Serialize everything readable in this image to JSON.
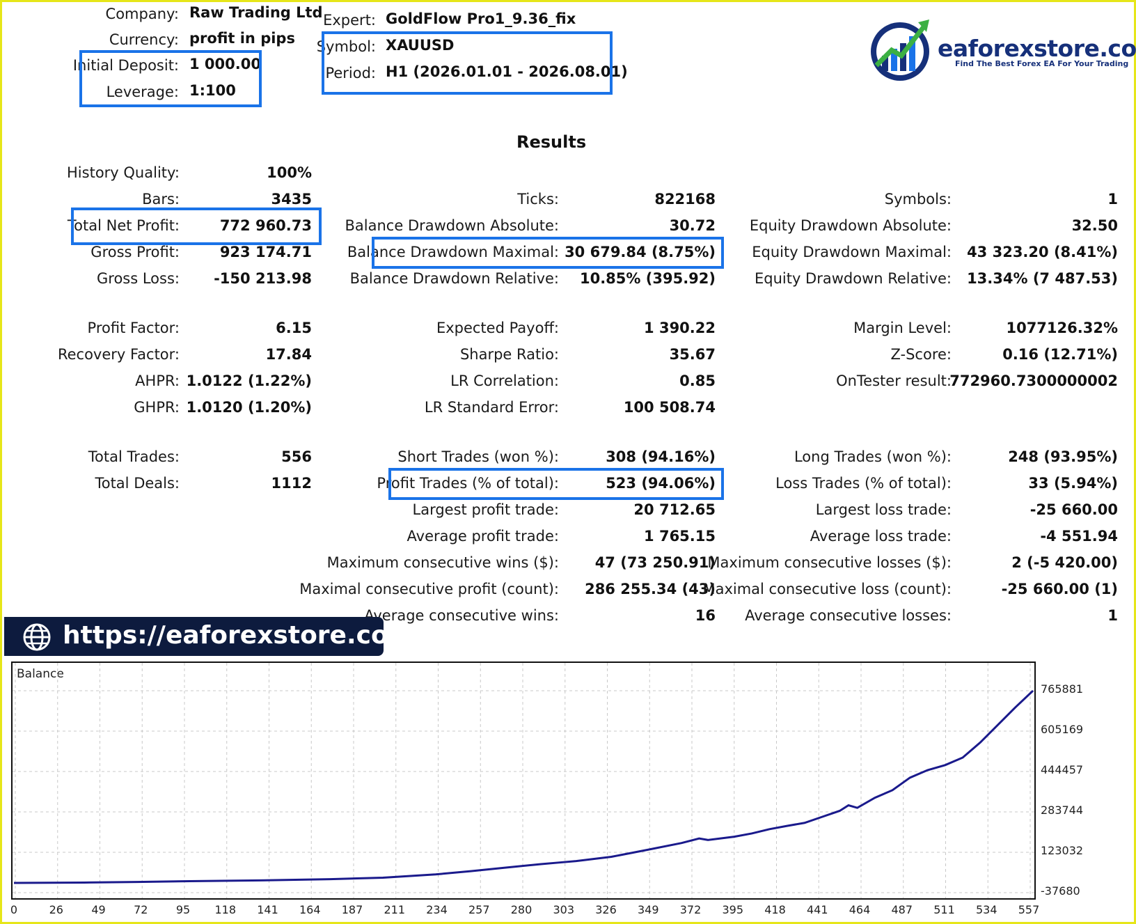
{
  "header": {
    "company_label": "Company:",
    "company": "Raw Trading Ltd",
    "currency_label": "Currency:",
    "currency": "profit in pips",
    "deposit_label": "Initial Deposit:",
    "deposit": "1 000.00",
    "leverage_label": "Leverage:",
    "leverage": "1:100",
    "expert_label": "Expert:",
    "expert": "GoldFlow Pro1_9.36_fix",
    "symbol_label": "Symbol:",
    "symbol": "XAUUSD",
    "period_label": "Period:",
    "period": "H1 (2026.01.01 - 2026.08.01)"
  },
  "logo": {
    "name": "eaforexstore.com",
    "tagline": "Find The Best Forex EA For Your Trading"
  },
  "results_title": "Results",
  "col1": {
    "history_quality_label": "History Quality:",
    "history_quality": "100%",
    "bars_label": "Bars:",
    "bars": "3435",
    "net_profit_label": "Total Net Profit:",
    "net_profit": "772 960.73",
    "gross_profit_label": "Gross Profit:",
    "gross_profit": "923 174.71",
    "gross_loss_label": "Gross Loss:",
    "gross_loss": "-150 213.98",
    "profit_factor_label": "Profit Factor:",
    "profit_factor": "6.15",
    "recovery_factor_label": "Recovery Factor:",
    "recovery_factor": "17.84",
    "ahpr_label": "AHPR:",
    "ahpr": "1.0122 (1.22%)",
    "ghpr_label": "GHPR:",
    "ghpr": "1.0120 (1.20%)",
    "total_trades_label": "Total Trades:",
    "total_trades": "556",
    "total_deals_label": "Total Deals:",
    "total_deals": "1112"
  },
  "col2": {
    "ticks_label": "Ticks:",
    "ticks": "822168",
    "bal_dd_abs_label": "Balance Drawdown Absolute:",
    "bal_dd_abs": "30.72",
    "bal_dd_max_label": "Balance Drawdown Maximal:",
    "bal_dd_max": "30 679.84 (8.75%)",
    "bal_dd_rel_label": "Balance Drawdown Relative:",
    "bal_dd_rel": "10.85% (395.92)",
    "expected_payoff_label": "Expected Payoff:",
    "expected_payoff": "1 390.22",
    "sharpe_label": "Sharpe Ratio:",
    "sharpe": "35.67",
    "lr_corr_label": "LR Correlation:",
    "lr_corr": "0.85",
    "lr_err_label": "LR Standard Error:",
    "lr_err": "100 508.74",
    "short_trades_label": "Short Trades (won %):",
    "short_trades": "308 (94.16%)",
    "profit_trades_label": "Profit Trades (% of total):",
    "profit_trades": "523 (94.06%)",
    "largest_profit_label": "Largest profit trade:",
    "largest_profit": "20 712.65",
    "avg_profit_label": "Average profit trade:",
    "avg_profit": "1 765.15",
    "max_cons_wins_label": "Maximum consecutive wins ($):",
    "max_cons_wins": "47 (73 250.91)",
    "max_cons_profit_label": "Maximal consecutive profit (count):",
    "max_cons_profit": "286 255.34 (43)",
    "avg_cons_wins_label": "Average consecutive wins:",
    "avg_cons_wins": "16"
  },
  "col3": {
    "symbols_label": "Symbols:",
    "symbols": "1",
    "eq_dd_abs_label": "Equity Drawdown Absolute:",
    "eq_dd_abs": "32.50",
    "eq_dd_max_label": "Equity Drawdown Maximal:",
    "eq_dd_max": "43 323.20 (8.41%)",
    "eq_dd_rel_label": "Equity Drawdown Relative:",
    "eq_dd_rel": "13.34% (7 487.53)",
    "margin_label": "Margin Level:",
    "margin": "1077126.32%",
    "zscore_label": "Z-Score:",
    "zscore": "0.16 (12.71%)",
    "ontester_label": "OnTester result:",
    "ontester": "772960.7300000002",
    "long_trades_label": "Long Trades (won %):",
    "long_trades": "248 (93.95%)",
    "loss_trades_label": "Loss Trades (% of total):",
    "loss_trades": "33 (5.94%)",
    "largest_loss_label": "Largest loss trade:",
    "largest_loss": "-25 660.00",
    "avg_loss_label": "Average loss trade:",
    "avg_loss": "-4 551.94",
    "max_cons_losses_label": "Maximum consecutive losses ($):",
    "max_cons_losses": "2 (-5 420.00)",
    "max_cons_loss_label": "Maximal consecutive loss (count):",
    "max_cons_loss": "-25 660.00 (1)",
    "avg_cons_losses_label": "Average consecutive losses:",
    "avg_cons_losses": "1"
  },
  "banner": {
    "url": "https://eaforexstore.com/",
    "icon": "globe-icon"
  },
  "colors": {
    "highlight": "#1a73e8",
    "banner_bg": "#0d1b3e",
    "line": "#1a1a8c",
    "frame": "#e6e619"
  },
  "chart_data": {
    "type": "line",
    "title": "",
    "legend": "Balance",
    "x_ticks": [
      "0",
      "26",
      "49",
      "72",
      "95",
      "118",
      "141",
      "164",
      "187",
      "211",
      "234",
      "257",
      "280",
      "303",
      "326",
      "349",
      "372",
      "395",
      "418",
      "441",
      "464",
      "487",
      "511",
      "534",
      "557"
    ],
    "y_ticks": [
      "765881",
      "605169",
      "444457",
      "283744",
      "123032",
      "-37680"
    ],
    "ylim": [
      -37680,
      765881
    ],
    "xlim": [
      0,
      580
    ],
    "series": [
      {
        "name": "Balance",
        "x": [
          0,
          40,
          70,
          100,
          140,
          180,
          210,
          240,
          260,
          280,
          300,
          310,
          320,
          340,
          360,
          380,
          390,
          395,
          410,
          420,
          430,
          440,
          450,
          460,
          470,
          475,
          480,
          490,
          500,
          510,
          520,
          530,
          540,
          550,
          560,
          570,
          580
        ],
        "y": [
          1000,
          2500,
          5000,
          8000,
          11000,
          16000,
          22000,
          35000,
          48000,
          62000,
          76000,
          82000,
          88000,
          105000,
          132000,
          160000,
          178000,
          172000,
          185000,
          198000,
          215000,
          228000,
          240000,
          264000,
          288000,
          310000,
          300000,
          340000,
          370000,
          420000,
          450000,
          470000,
          500000,
          560000,
          630000,
          700000,
          765881
        ]
      }
    ]
  }
}
